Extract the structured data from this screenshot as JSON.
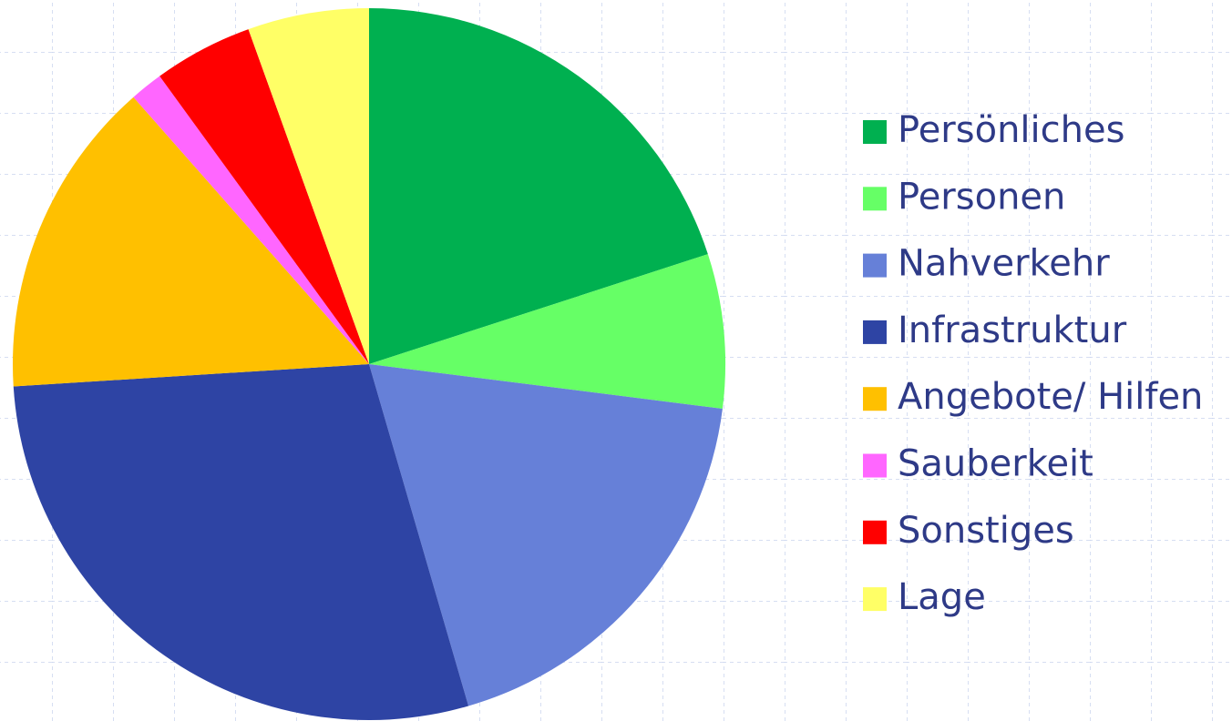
{
  "chart_data": {
    "type": "pie",
    "categories": [
      "Persönliches",
      "Personen",
      "Nahverkehr",
      "Infrastruktur",
      "Angebote/ Hilfen",
      "Sauberkeit",
      "Sonstiges",
      "Lage"
    ],
    "values": [
      20,
      7,
      18.5,
      28.5,
      14.5,
      1.5,
      4.5,
      5.5
    ],
    "colors": [
      "#00b050",
      "#66ff66",
      "#6680d8",
      "#2e44a4",
      "#ffc000",
      "#ff66ff",
      "#ff0000",
      "#ffff66"
    ],
    "legend": "right"
  }
}
